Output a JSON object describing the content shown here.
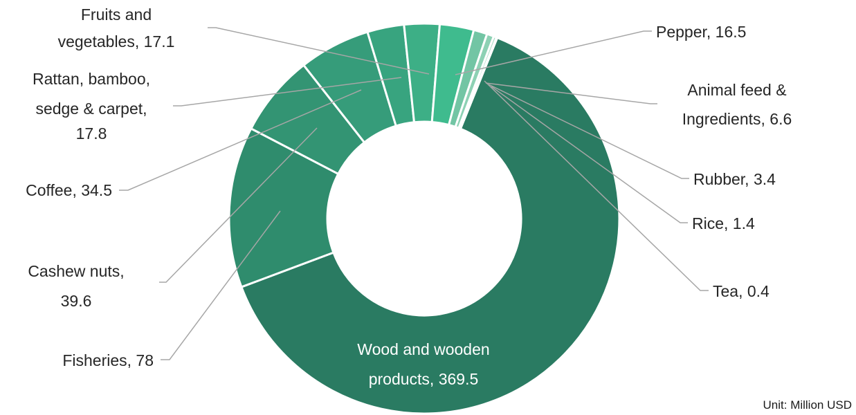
{
  "chart_data": {
    "type": "pie",
    "donut": true,
    "unit_note": "Unit: Million USD",
    "slices": [
      {
        "label": "Wood and wooden products",
        "value": 369.5,
        "display_value": "369.5",
        "color": "#2a7b62",
        "label_inside": true
      },
      {
        "label": "Fisheries",
        "value": 78,
        "display_value": "78",
        "color": "#2f8c6d"
      },
      {
        "label": "Cashew nuts",
        "value": 39.6,
        "display_value": "39.6",
        "color": "#339473"
      },
      {
        "label": "Coffee",
        "value": 34.5,
        "display_value": "34.5",
        "color": "#369c7a"
      },
      {
        "label": "Rattan, bamboo, sedge & carpet",
        "value": 17.8,
        "display_value": "17.8",
        "color": "#38a47f"
      },
      {
        "label": "Fruits and vegetables",
        "value": 17.1,
        "display_value": "17.1",
        "color": "#3daf86"
      },
      {
        "label": "Pepper",
        "value": 16.5,
        "display_value": "16.5",
        "color": "#3fbb8e"
      },
      {
        "label": "Animal feed & Ingredients",
        "value": 6.6,
        "display_value": "6.6",
        "color": "#72c5a4"
      },
      {
        "label": "Rubber",
        "value": 3.4,
        "display_value": "3.4",
        "color": "#8dd1b4"
      },
      {
        "label": "Rice",
        "value": 1.4,
        "display_value": "1.4",
        "color": "#a6dbc3"
      },
      {
        "label": "Tea",
        "value": 0.4,
        "display_value": "0.4",
        "color": "#c4e8d6"
      }
    ]
  }
}
